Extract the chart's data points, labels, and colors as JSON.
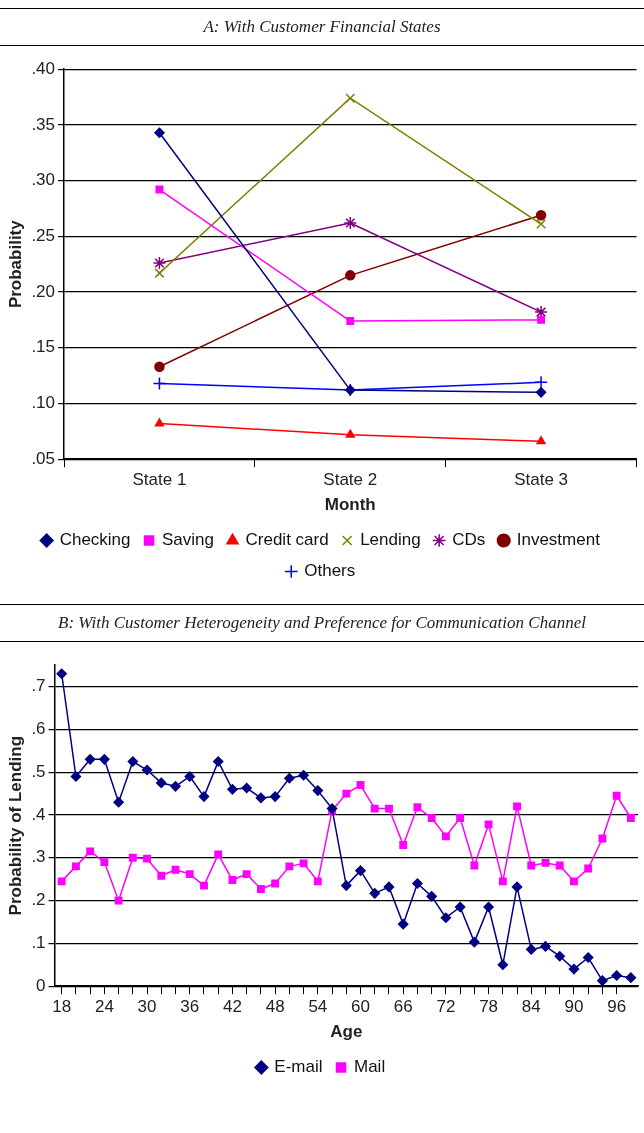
{
  "chart_data": [
    {
      "type": "line",
      "title": "A: With Customer Financial States",
      "xlabel": "Month",
      "ylabel": "Probability",
      "categories": [
        "State 1",
        "State 2",
        "State 3"
      ],
      "series": [
        {
          "name": "Checking",
          "color": "#000080",
          "marker": "diamond",
          "values": [
            0.343,
            0.112,
            0.11
          ]
        },
        {
          "name": "Saving",
          "color": "#ff00ff",
          "marker": "square",
          "values": [
            0.292,
            0.174,
            0.175
          ]
        },
        {
          "name": "Credit card",
          "color": "#ff0000",
          "marker": "triangle",
          "values": [
            0.082,
            0.072,
            0.066
          ]
        },
        {
          "name": "Lending",
          "color": "#808000",
          "marker": "cross",
          "values": [
            0.217,
            0.374,
            0.261
          ]
        },
        {
          "name": "CDs",
          "color": "#800080",
          "marker": "cross",
          "values": [
            0.226,
            0.262,
            0.182
          ]
        },
        {
          "name": "Investment",
          "color": "#800000",
          "marker": "circle",
          "values": [
            0.133,
            0.215,
            0.269
          ]
        },
        {
          "name": "Others",
          "color": "#0000ff",
          "marker": "cross",
          "values": [
            0.118,
            0.112,
            0.119
          ]
        }
      ],
      "ylim": [
        0.05,
        0.4
      ],
      "yticks": [
        {
          "value": 0.05,
          "label": ".05"
        },
        {
          "value": 0.1,
          "label": ".10"
        },
        {
          "value": 0.15,
          "label": ".15"
        },
        {
          "value": 0.2,
          "label": ".20"
        },
        {
          "value": 0.25,
          "label": ".25"
        },
        {
          "value": 0.3,
          "label": ".30"
        },
        {
          "value": 0.35,
          "label": ".35"
        },
        {
          "value": 0.4,
          "label": ".40"
        }
      ],
      "grid": "y",
      "legend": "bottom",
      "line_style": "solid"
    },
    {
      "type": "line",
      "title": "B: With Customer Heterogeneity and Preference for Communication Channel",
      "xlabel": "Age",
      "ylabel": "Probability of Lending",
      "x": [
        18,
        20,
        22,
        24,
        26,
        28,
        30,
        32,
        34,
        36,
        38,
        40,
        42,
        44,
        46,
        48,
        50,
        52,
        54,
        56,
        58,
        60,
        62,
        64,
        66,
        68,
        70,
        72,
        74,
        76,
        78,
        80,
        82,
        84,
        86,
        88,
        90,
        92,
        94,
        96,
        98
      ],
      "series": [
        {
          "name": "E-mail",
          "color": "#000080",
          "marker": "diamond",
          "values": [
            0.73,
            0.49,
            0.53,
            0.53,
            0.43,
            0.525,
            0.505,
            0.475,
            0.467,
            0.49,
            0.443,
            0.525,
            0.46,
            0.463,
            0.44,
            0.443,
            0.486,
            0.493,
            0.457,
            0.415,
            0.235,
            0.27,
            0.217,
            0.232,
            0.145,
            0.24,
            0.21,
            0.16,
            0.185,
            0.103,
            0.185,
            0.05,
            0.232,
            0.086,
            0.093,
            0.07,
            0.04,
            0.067,
            0.013,
            0.025,
            0.02
          ]
        },
        {
          "name": "Mail",
          "color": "#ff00ff",
          "marker": "square",
          "values": [
            0.245,
            0.28,
            0.315,
            0.29,
            0.2,
            0.3,
            0.298,
            0.258,
            0.272,
            0.262,
            0.235,
            0.308,
            0.248,
            0.262,
            0.227,
            0.24,
            0.28,
            0.287,
            0.245,
            0.41,
            0.45,
            0.47,
            0.415,
            0.415,
            0.33,
            0.418,
            0.393,
            0.35,
            0.393,
            0.282,
            0.378,
            0.245,
            0.42,
            0.282,
            0.288,
            0.282,
            0.245,
            0.275,
            0.345,
            0.445,
            0.393
          ]
        }
      ],
      "xlim": [
        17,
        99
      ],
      "xticks": [
        18,
        {
          "value": 20,
          "label": null
        },
        {
          "value": 22,
          "label": null
        },
        24,
        {
          "value": 26,
          "label": null
        },
        {
          "value": 28,
          "label": null
        },
        30,
        {
          "value": 32,
          "label": null
        },
        {
          "value": 34,
          "label": null
        },
        36,
        {
          "value": 38,
          "label": null
        },
        {
          "value": 40,
          "label": null
        },
        42,
        {
          "value": 44,
          "label": null
        },
        {
          "value": 46,
          "label": null
        },
        48,
        {
          "value": 50,
          "label": null
        },
        {
          "value": 52,
          "label": null
        },
        54,
        {
          "value": 56,
          "label": null
        },
        {
          "value": 58,
          "label": null
        },
        60,
        {
          "value": 62,
          "label": null
        },
        {
          "value": 64,
          "label": null
        },
        66,
        {
          "value": 68,
          "label": null
        },
        {
          "value": 70,
          "label": null
        },
        72,
        {
          "value": 74,
          "label": null
        },
        {
          "value": 76,
          "label": null
        },
        78,
        {
          "value": 80,
          "label": null
        },
        {
          "value": 82,
          "label": null
        },
        84,
        {
          "value": 86,
          "label": null
        },
        {
          "value": 88,
          "label": null
        },
        90,
        {
          "value": 92,
          "label": null
        },
        {
          "value": 94,
          "label": null
        },
        96
      ],
      "ylim": [
        0,
        0.75
      ],
      "yticks": [
        0,
        {
          "value": 0.1,
          "label": ".1"
        },
        {
          "value": 0.2,
          "label": ".2"
        },
        {
          "value": 0.3,
          "label": ".3"
        },
        {
          "value": 0.4,
          "label": ".4"
        },
        {
          "value": 0.5,
          "label": ".5"
        },
        {
          "value": 0.6,
          "label": ".6"
        },
        {
          "value": 0.7,
          "label": ".7"
        }
      ],
      "grid": "y",
      "legend": "bottom",
      "line_style": "solid"
    }
  ]
}
